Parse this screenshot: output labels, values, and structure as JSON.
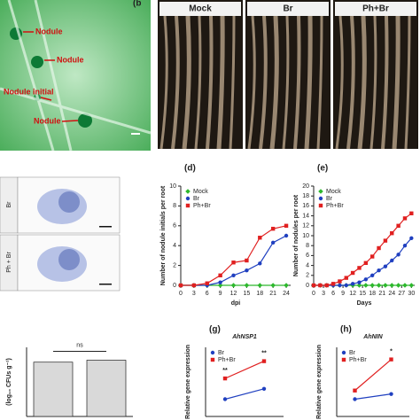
{
  "figure": {
    "a_labels": [
      "Nodule",
      "Nodule",
      "Nodule initial",
      "Nodule"
    ],
    "b_label": "(b",
    "b_headers": [
      "Mock",
      "Br",
      "Ph+Br"
    ],
    "c_rows": [
      "Br",
      "Ph + Br"
    ]
  },
  "chart_data": [
    {
      "type": "line",
      "panel": "(d)",
      "xlabel": "dpi",
      "ylabel": "Number of nodule initials per root",
      "x": [
        0,
        3,
        6,
        9,
        12,
        15,
        18,
        21,
        24
      ],
      "xlim": [
        0,
        25
      ],
      "xticks": [
        0,
        3,
        6,
        9,
        12,
        15,
        18,
        21,
        24
      ],
      "ylim": [
        0,
        10
      ],
      "yticks": [
        0,
        2,
        4,
        6,
        8,
        10
      ],
      "legend": "upper left",
      "series": [
        {
          "name": "Mock",
          "color": "#2db82d",
          "marker": "diamond",
          "values": [
            0,
            0,
            0,
            0,
            0,
            0,
            0,
            0,
            0
          ]
        },
        {
          "name": "Br",
          "color": "#2040c0",
          "marker": "circle",
          "values": [
            0,
            0,
            0,
            0.3,
            1.0,
            1.5,
            2.2,
            4.3,
            5.0
          ]
        },
        {
          "name": "Ph+Br",
          "color": "#e02020",
          "marker": "square",
          "values": [
            0,
            0,
            0.2,
            1.0,
            2.3,
            2.5,
            4.8,
            5.7,
            6.0
          ]
        }
      ]
    },
    {
      "type": "line",
      "panel": "(e)",
      "xlabel": "Days",
      "ylabel": "Number of nodules per root",
      "x": [
        0,
        2,
        4,
        6,
        8,
        10,
        12,
        14,
        16,
        18,
        20,
        22,
        24,
        26,
        28,
        30
      ],
      "xlim": [
        0,
        31
      ],
      "xticks": [
        0,
        3,
        6,
        9,
        12,
        15,
        18,
        21,
        24,
        27,
        30
      ],
      "ylim": [
        0,
        20
      ],
      "yticks": [
        0,
        2,
        4,
        6,
        8,
        10,
        12,
        14,
        16,
        18,
        20
      ],
      "legend": "upper left",
      "series": [
        {
          "name": "Mock",
          "color": "#2db82d",
          "marker": "diamond",
          "values": [
            0,
            0,
            0,
            0,
            0,
            0,
            0,
            0,
            0,
            0,
            0,
            0,
            0,
            0,
            0,
            0
          ]
        },
        {
          "name": "Br",
          "color": "#2040c0",
          "marker": "circle",
          "values": [
            0,
            0,
            0,
            0,
            0,
            0,
            0.3,
            0.6,
            1.2,
            2,
            3,
            3.8,
            5,
            6.2,
            8,
            9.5
          ]
        },
        {
          "name": "Ph+Br",
          "color": "#e02020",
          "marker": "square",
          "values": [
            0,
            0,
            0,
            0.3,
            0.8,
            1.5,
            2.5,
            3.5,
            4.5,
            5.8,
            7.5,
            9,
            10.5,
            12,
            13.5,
            14.5
          ]
        }
      ]
    },
    {
      "type": "bar",
      "ylabel": "(log₁₀ CFUs g⁻¹)",
      "values": [
        5.5,
        5.7
      ],
      "color": "#d9d9d9",
      "ylim": [
        0,
        7
      ],
      "annotation": "ns"
    },
    {
      "type": "line",
      "title": "AhNSP1",
      "ylabel": "Relative gene expression",
      "panel": "(g)",
      "ylim": [
        0,
        4
      ],
      "legend": "upper left",
      "annotations": [
        "**",
        "**"
      ],
      "series": [
        {
          "name": "Br",
          "color": "#2040c0",
          "marker": "circle",
          "values": [
            1.0,
            1.6
          ]
        },
        {
          "name": "Ph+Br",
          "color": "#e02020",
          "marker": "square",
          "values": [
            2.2,
            3.2
          ]
        }
      ]
    },
    {
      "type": "line",
      "title": "AhNIN",
      "ylabel": "Relative gene expression",
      "panel": "(h)",
      "ylim": [
        0,
        4
      ],
      "legend": "upper left",
      "annotations": [
        null,
        "*"
      ],
      "series": [
        {
          "name": "Br",
          "color": "#2040c0",
          "marker": "circle",
          "values": [
            1.0,
            1.3
          ]
        },
        {
          "name": "Ph+Br",
          "color": "#e02020",
          "marker": "square",
          "values": [
            1.5,
            3.3
          ]
        }
      ]
    }
  ]
}
